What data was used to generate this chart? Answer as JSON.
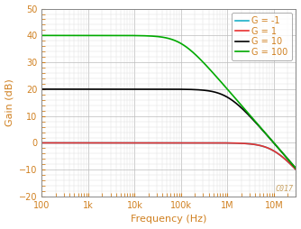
{
  "xlabel": "Frequency (Hz)",
  "ylabel": "Gain (dB)",
  "xlim": [
    100,
    30000000.0
  ],
  "ylim": [
    -20,
    50
  ],
  "yticks": [
    -20,
    -10,
    0,
    10,
    20,
    30,
    40,
    50
  ],
  "xtick_labels": [
    "100",
    "1k",
    "10k",
    "100k",
    "1M",
    "10M"
  ],
  "xtick_values": [
    100,
    1000,
    10000,
    100000,
    1000000,
    10000000
  ],
  "gain_bandwidth": 10000000.0,
  "curves": [
    {
      "label": "G = -1",
      "G_linear": 1,
      "color": "#1ab0c8",
      "lw": 1.2,
      "gbw_mult": 1.0
    },
    {
      "label": "G = 1",
      "G_linear": 1,
      "color": "#e83030",
      "lw": 1.2,
      "gbw_mult": 1.0
    },
    {
      "label": "G = 10",
      "G_linear": 10,
      "color": "#000000",
      "lw": 1.2,
      "gbw_mult": 1.0
    },
    {
      "label": "G = 100",
      "G_linear": 100,
      "color": "#00aa00",
      "lw": 1.2,
      "gbw_mult": 1.0
    }
  ],
  "legend_loc": "upper right",
  "background_color": "#ffffff",
  "grid_major_color": "#bbbbbb",
  "grid_minor_color": "#dddddd",
  "tick_label_color": "#d08020",
  "axis_label_color": "#d08020",
  "legend_text_color": "#d08020",
  "watermark": "C017",
  "watermark_color": "#c8a060",
  "watermark_fontsize": 6,
  "tick_fontsize": 7,
  "label_fontsize": 8,
  "legend_fontsize": 7
}
